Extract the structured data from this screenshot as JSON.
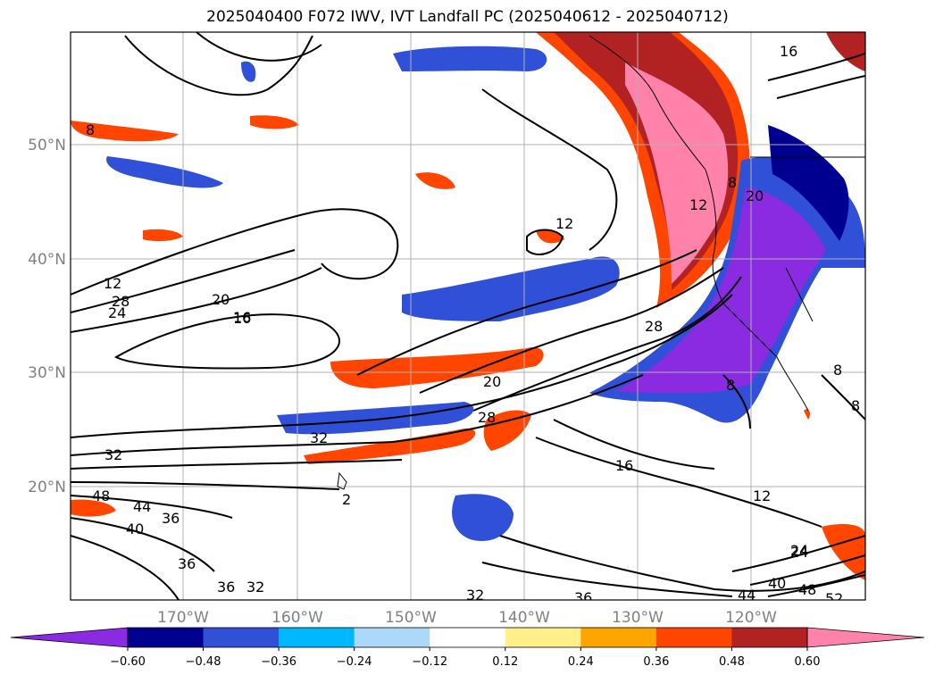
{
  "title": "2025040400 F072 IWV, IVT Landfall PC (2025040612 - 2025040712)",
  "lat_labels": [
    "50°N",
    "40°N",
    "30°N",
    "20°N"
  ],
  "lon_labels": [
    "170°W",
    "160°W",
    "150°W",
    "140°W",
    "130°W",
    "120°W"
  ],
  "colorbar": {
    "colors": [
      "#8a2be2",
      "#000090",
      "#3050d8",
      "#00b8ff",
      "#add8f8",
      "#ffffff",
      "#fff08a",
      "#ffa500",
      "#ff4500",
      "#b22222",
      "#ff82ab"
    ],
    "tick_labels": [
      "−0.60",
      "−0.48",
      "−0.36",
      "−0.24",
      "−0.12",
      "0.12",
      "0.24",
      "0.36",
      "0.48",
      "0.60"
    ]
  },
  "contour_labels": [
    "16",
    "12",
    "8",
    "12",
    "28",
    "24",
    "20",
    "16",
    "20",
    "8",
    "12",
    "28",
    "20",
    "16",
    "8",
    "32",
    "32",
    "28",
    "16",
    "12",
    "48",
    "44",
    "36",
    "40",
    "36",
    "36",
    "32",
    "24",
    "2",
    "32",
    "36",
    "24",
    "44",
    "40",
    "48",
    "52",
    "8",
    "8"
  ]
}
